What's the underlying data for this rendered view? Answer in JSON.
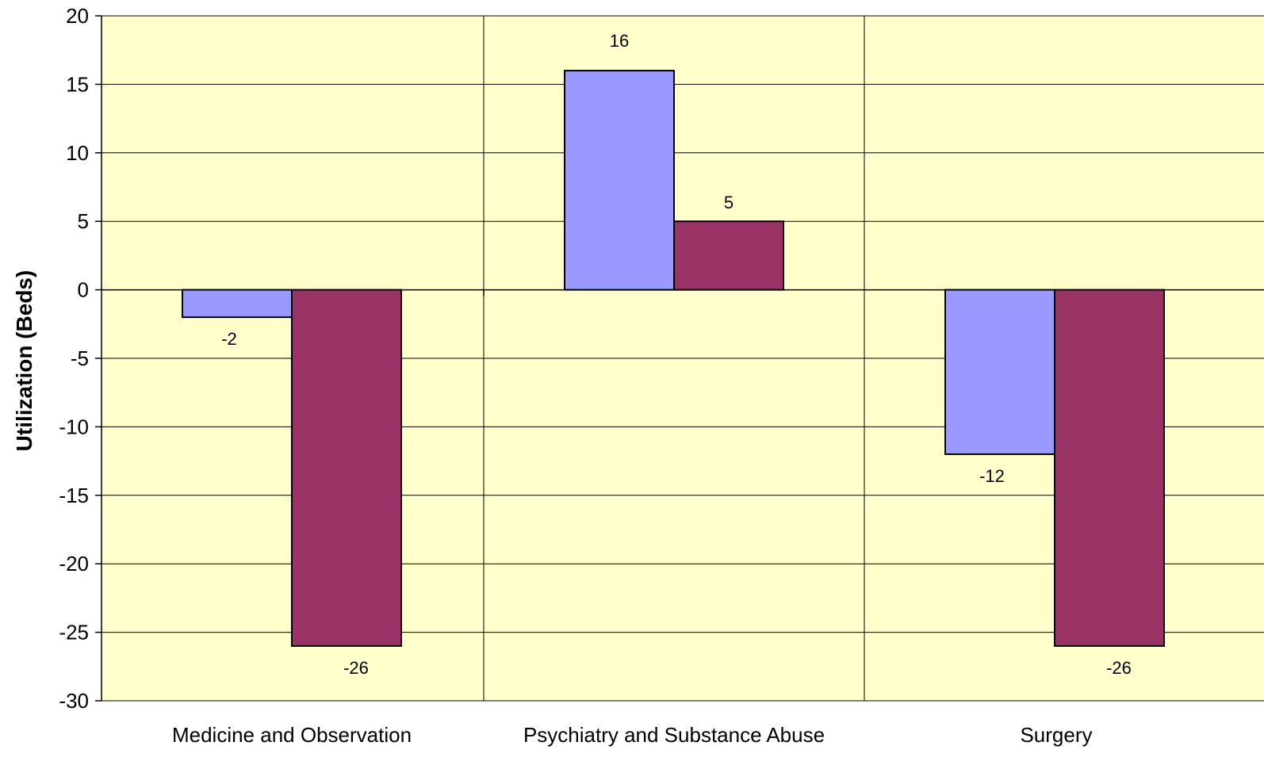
{
  "chart_data": {
    "type": "bar",
    "title": "",
    "xlabel": "",
    "ylabel": "Utilization (Beds)",
    "ylim": [
      -30,
      20
    ],
    "yticks": [
      20,
      15,
      10,
      5,
      0,
      -5,
      -10,
      -15,
      -20,
      -25,
      -30
    ],
    "grid": true,
    "legend": "none",
    "categories": [
      "Medicine and Observation",
      "Psychiatry and Substance Abuse",
      "Surgery"
    ],
    "series": [
      {
        "values": [
          -2,
          16,
          -12
        ],
        "color": "#9999ff"
      },
      {
        "values": [
          -26,
          5,
          -26
        ],
        "color": "#993366"
      }
    ],
    "data_labels": [
      [
        "-2",
        "16",
        "-12"
      ],
      [
        "-26",
        "5",
        "-26"
      ]
    ],
    "plot_background": "#ffffcc"
  }
}
